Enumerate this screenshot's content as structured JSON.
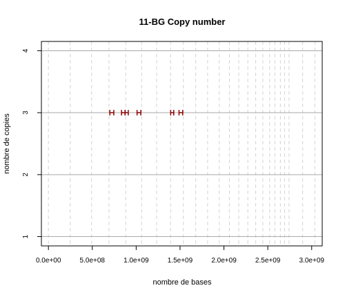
{
  "chart_data": {
    "type": "scatter",
    "title": "11-BG Copy number",
    "xlabel": "nombre de bases",
    "ylabel": "nombre de copies",
    "xlim": [
      -80000000,
      3120000000
    ],
    "ylim": [
      0.85,
      4.15
    ],
    "x_ticks": [
      {
        "value": 0,
        "label": "0.0e+00"
      },
      {
        "value": 500000000,
        "label": "5.0e+08"
      },
      {
        "value": 1000000000,
        "label": "1.0e+09"
      },
      {
        "value": 1500000000,
        "label": "1.5e+09"
      },
      {
        "value": 2000000000,
        "label": "2.0e+09"
      },
      {
        "value": 2500000000,
        "label": "2.5e+09"
      },
      {
        "value": 3000000000,
        "label": "3.0e+09"
      }
    ],
    "y_ticks": [
      {
        "value": 1,
        "label": "1"
      },
      {
        "value": 2,
        "label": "2"
      },
      {
        "value": 3,
        "label": "3"
      },
      {
        "value": 4,
        "label": "4"
      }
    ],
    "vertical_dashed_lines_x": [
      0,
      249000000,
      492000000,
      690000000,
      881000000,
      1062000000,
      1233000000,
      1392000000,
      1538000000,
      1679000000,
      1814000000,
      1947000000,
      2062000000,
      2169000000,
      2272000000,
      2362000000,
      2443000000,
      2521000000,
      2580000000,
      2643000000,
      2691000000,
      2742000000,
      2897000000,
      3036000000
    ],
    "horizontal_grid_y": [
      1,
      2,
      3,
      4
    ],
    "segments": [
      {
        "x_start": 700000000,
        "x_end": 745000000,
        "y": 3
      },
      {
        "x_start": 833000000,
        "x_end": 873000000,
        "y": 3
      },
      {
        "x_start": 873000000,
        "x_end": 910000000,
        "y": 3
      },
      {
        "x_start": 1010000000,
        "x_end": 1053000000,
        "y": 3
      },
      {
        "x_start": 1393000000,
        "x_end": 1428000000,
        "y": 3
      },
      {
        "x_start": 1488000000,
        "x_end": 1530000000,
        "y": 3
      }
    ],
    "colors": {
      "segment": "#8b0000",
      "grid_solid": "#a9a9a9",
      "grid_dashed": "#d3d3d3",
      "axis": "#000000"
    }
  }
}
